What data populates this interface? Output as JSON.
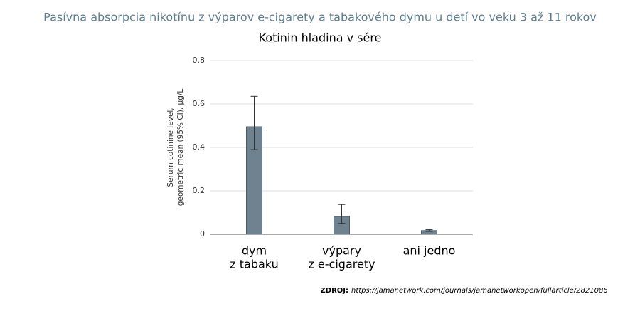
{
  "chart_data": {
    "type": "bar",
    "title": "Pasívna absorpcia nikotínu z výparov e-cigarety a tabakového dymu u detí vo veku 3 až 11 rokov",
    "subtitle": "Kotinin hladina v sére",
    "ylabel": [
      "Serum cotinine level,",
      "geometric mean (95% CI), µg/L"
    ],
    "categories": [
      [
        "dym",
        "z tabaku"
      ],
      [
        "výpary",
        "z e-cigarety"
      ],
      [
        "ani jedno"
      ]
    ],
    "values": [
      0.495,
      0.082,
      0.017
    ],
    "ci_low": [
      0.39,
      0.05,
      0.013
    ],
    "ci_high": [
      0.635,
      0.137,
      0.021
    ],
    "color": "#6e8290",
    "ylim": [
      0,
      0.8
    ],
    "yticks": [
      0,
      0.2,
      0.4,
      0.6,
      0.8
    ],
    "grid": true,
    "source_label": "ZDROJ:",
    "source_url": "https://jamanetwork.com/journals/jamanetworkopen/fullarticle/2821086"
  }
}
